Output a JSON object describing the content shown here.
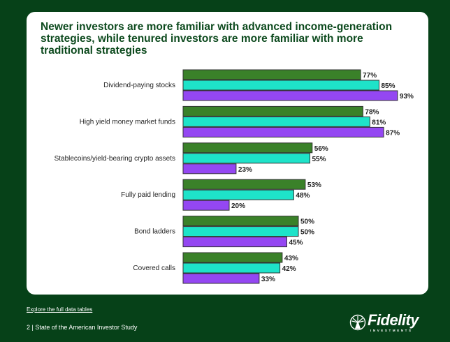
{
  "chart_data": {
    "type": "bar",
    "orientation": "horizontal",
    "title": "Newer investors are more familiar with advanced income-generation strategies, while tenured investors are more familiar with more traditional strategies",
    "categories": [
      "Dividend-paying stocks",
      "High yield money market funds",
      "Stablecoins/yield-bearing crypto assets",
      "Fully paid lending",
      "Bond ladders",
      "Covered calls"
    ],
    "series": [
      {
        "name": "series-1",
        "color": "#3a8129",
        "values": [
          77,
          78,
          56,
          53,
          50,
          43
        ]
      },
      {
        "name": "series-2",
        "color": "#1ee3c9",
        "values": [
          85,
          81,
          55,
          48,
          50,
          42
        ]
      },
      {
        "name": "series-3",
        "color": "#9447f2",
        "values": [
          93,
          87,
          23,
          20,
          45,
          33
        ]
      }
    ],
    "value_suffix": "%",
    "xlim": [
      0,
      100
    ],
    "grid": false
  },
  "footer": {
    "link": "Explore the full data tables",
    "page": "2 | State of the American Investor Study",
    "logo_word": "Fidelity",
    "logo_sub": "INVESTMENTS"
  }
}
